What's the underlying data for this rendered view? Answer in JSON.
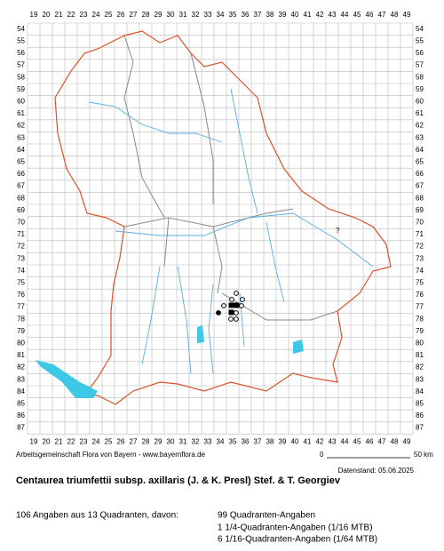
{
  "grid": {
    "columns": [
      19,
      20,
      21,
      22,
      23,
      24,
      25,
      26,
      27,
      28,
      29,
      30,
      31,
      32,
      33,
      34,
      35,
      36,
      37,
      38,
      39,
      40,
      41,
      42,
      43,
      44,
      45,
      46,
      47,
      48,
      49
    ],
    "rows": [
      54,
      55,
      56,
      57,
      58,
      59,
      60,
      61,
      62,
      63,
      64,
      65,
      66,
      67,
      68,
      69,
      70,
      71,
      72,
      73,
      74,
      75,
      76,
      77,
      78,
      79,
      80,
      81,
      82,
      83,
      84,
      85,
      86,
      87
    ]
  },
  "note": "?",
  "credit": "Arbeitsgemeinschaft Flora von Bayern - www.bayernflora.de",
  "scale": {
    "start": "0",
    "end": "50 km"
  },
  "date": "Datenstand: 05.06.2025",
  "title": "Centaurea triumfettii subsp. axillaris (J. & K. Presl) Stef. & T. Georgiev",
  "summary": "106 Angaben aus 13 Quadranten, davon:",
  "details": [
    "99 Quadranten-Angaben",
    "1 1/4-Quadranten-Angaben (1/16 MTB)",
    "6 1/16-Quadranten-Angaben (1/64 MTB)"
  ]
}
